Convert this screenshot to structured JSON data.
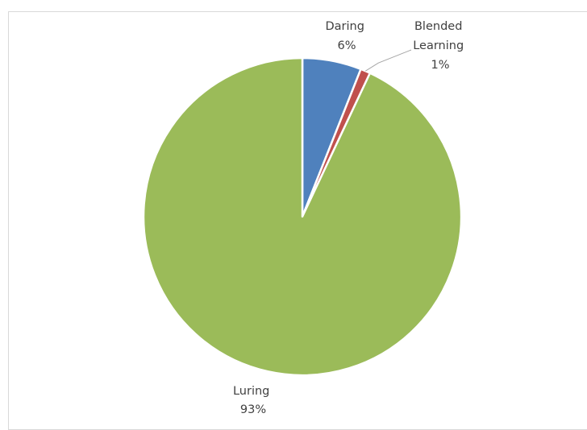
{
  "chart_data": {
    "type": "pie",
    "title": "",
    "start_angle_deg": 0,
    "direction": "clockwise",
    "slices": [
      {
        "name": "Daring",
        "value": 6,
        "percent_label": "6%",
        "color": "#4f81bd"
      },
      {
        "name": "Blended Learning",
        "value": 1,
        "percent_label": "1%",
        "color": "#c0504d"
      },
      {
        "name": "Luring",
        "value": 93,
        "percent_label": "93%",
        "color": "#9bbb59"
      }
    ],
    "legend": "none"
  }
}
